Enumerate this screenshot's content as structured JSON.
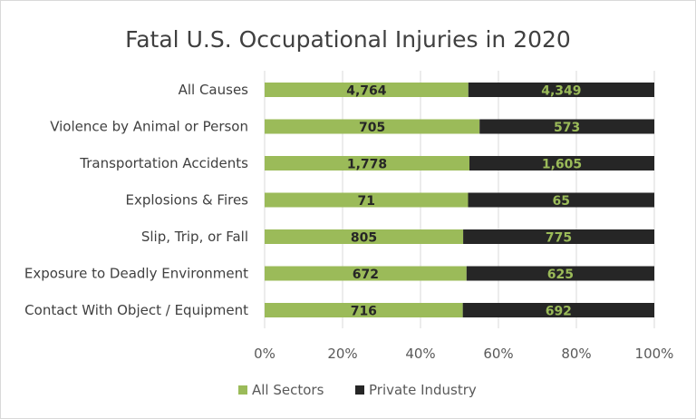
{
  "chart_data": {
    "type": "bar",
    "stacking": "percent",
    "orientation": "horizontal",
    "title": "Fatal U.S. Occupational Injuries in 2020",
    "categories": [
      "All Causes",
      "Violence by Animal or Person",
      "Transportation Accidents",
      "Explosions & Fires",
      "Slip, Trip, or Fall",
      "Exposure to Deadly Environment",
      "Contact With Object / Equipment"
    ],
    "series": [
      {
        "name": "All Sectors",
        "color": "#9BBB59",
        "label_color": "#262626",
        "values": [
          4764,
          705,
          1778,
          71,
          805,
          672,
          716
        ],
        "labels": [
          "4,764",
          "705",
          "1,778",
          "71",
          "805",
          "672",
          "716"
        ]
      },
      {
        "name": "Private Industry",
        "color": "#262626",
        "label_color": "#9BBB59",
        "values": [
          4349,
          573,
          1605,
          65,
          775,
          625,
          692
        ],
        "labels": [
          "4,349",
          "573",
          "1,605",
          "65",
          "775",
          "625",
          "692"
        ]
      }
    ],
    "xticks": [
      "0%",
      "20%",
      "40%",
      "60%",
      "80%",
      "100%"
    ],
    "xlim": [
      0,
      100
    ],
    "grid": true,
    "legend": "bottom"
  }
}
